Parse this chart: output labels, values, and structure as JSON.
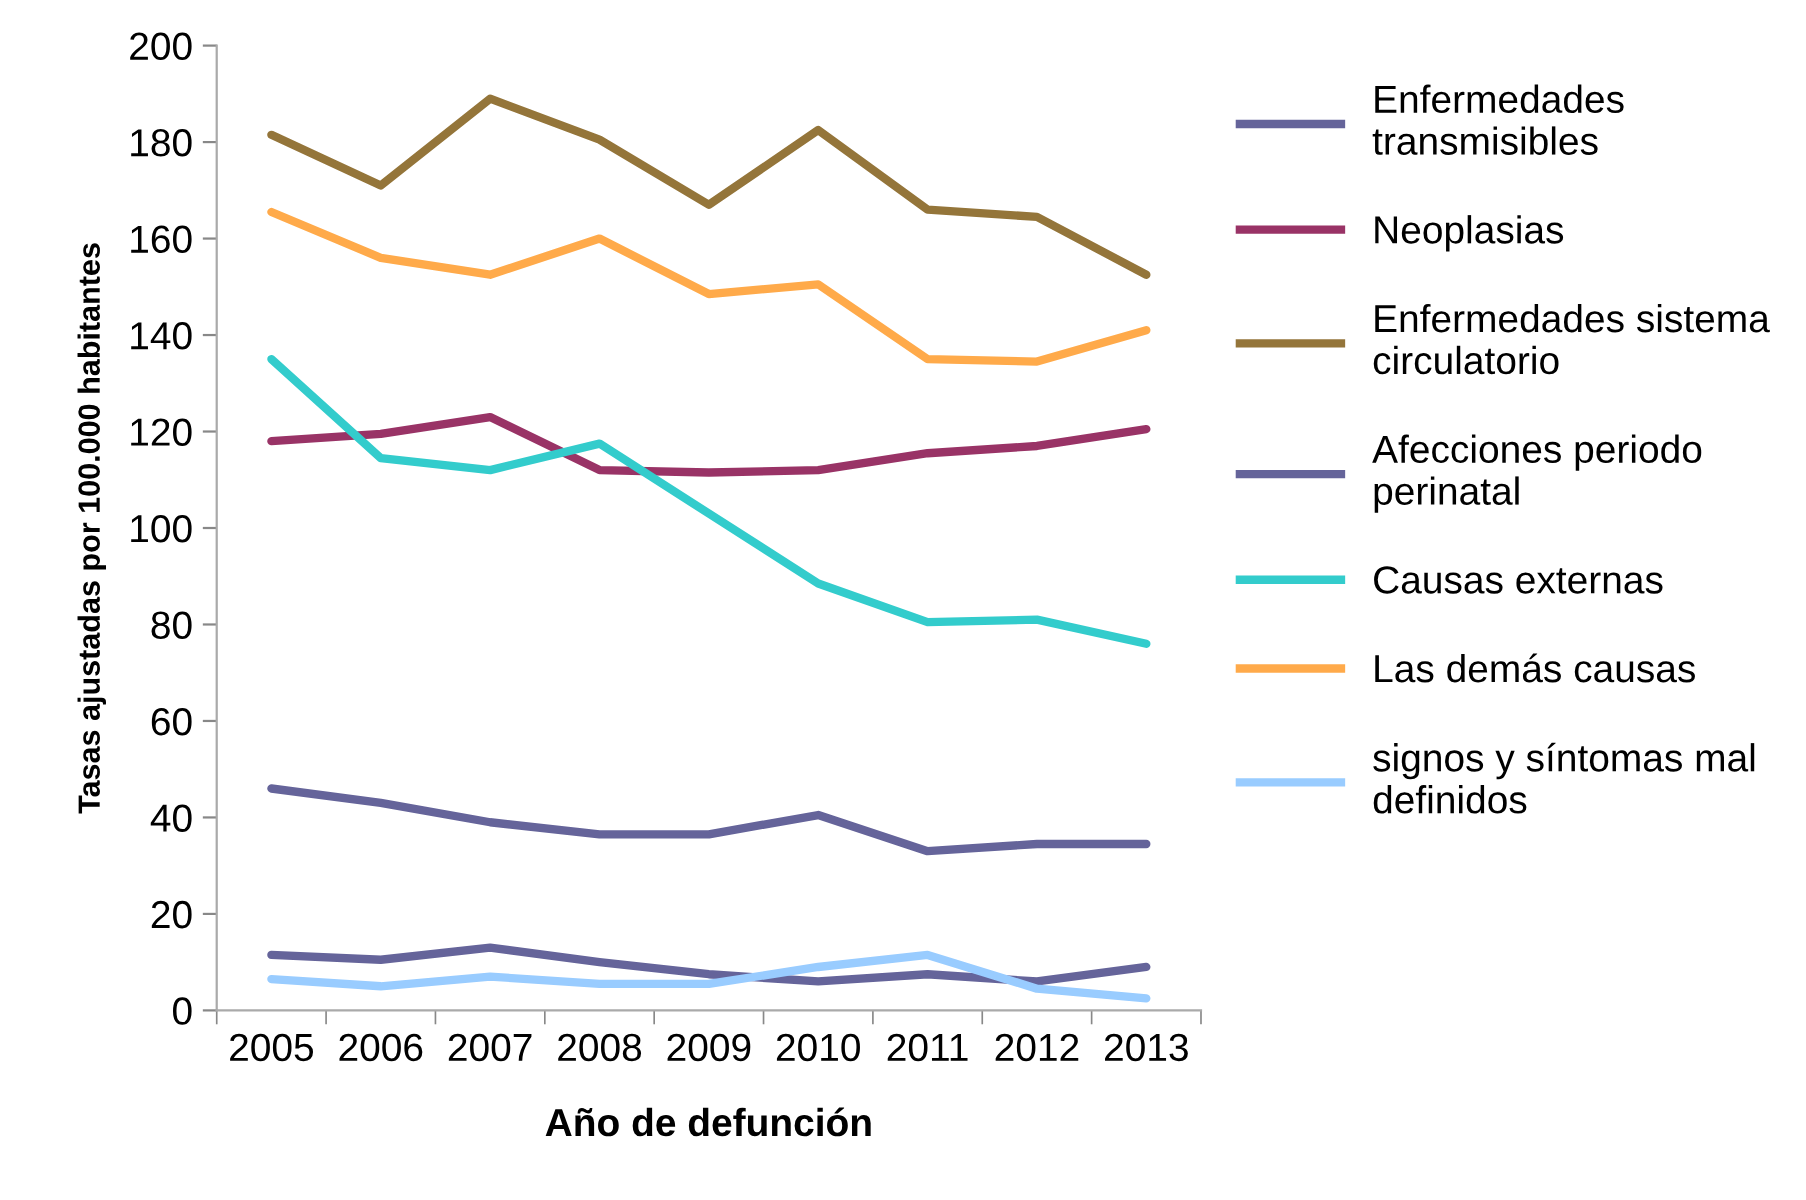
{
  "chart_data": {
    "type": "line",
    "xlabel": "Año de defunción",
    "ylabel": "Tasas ajustadas por 100.000 habitantes",
    "categories": [
      "2005",
      "2006",
      "2007",
      "2008",
      "2009",
      "2010",
      "2011",
      "2012",
      "2013"
    ],
    "series": [
      {
        "name": "Enfermedades\ntransmisibles",
        "color": "#65649a",
        "values": [
          46,
          43,
          39,
          36.5,
          36.5,
          40.5,
          33,
          34.5,
          34.5
        ]
      },
      {
        "name": "Neoplasias",
        "color": "#993366",
        "values": [
          118,
          119.5,
          123,
          112,
          111.5,
          112,
          115.5,
          117,
          120.5
        ]
      },
      {
        "name": "Enfermedades sistema\ncirculatorio",
        "color": "#94753a",
        "values": [
          181.5,
          171,
          189,
          180.5,
          167,
          182.5,
          166,
          164.5,
          152.5
        ]
      },
      {
        "name": "Afecciones periodo\nperinatal",
        "color": "#65649a",
        "values": [
          11.5,
          10.5,
          13,
          10,
          7.5,
          6,
          7.5,
          6,
          9
        ]
      },
      {
        "name": "Causas externas",
        "color": "#33cccc",
        "values": [
          135,
          114.5,
          112,
          117.5,
          103,
          88.5,
          80.5,
          81,
          76
        ]
      },
      {
        "name": "Las demás causas",
        "color": "#ffaa4a",
        "values": [
          165.5,
          156,
          152.5,
          160,
          148.5,
          150.5,
          135,
          134.5,
          141
        ]
      },
      {
        "name": "signos y síntomas mal\ndefinidos",
        "color": "#99ccff",
        "values": [
          6.5,
          5,
          7,
          5.5,
          5.5,
          9,
          11.5,
          4.5,
          2.5
        ]
      }
    ],
    "ylim": [
      0,
      200
    ],
    "yticks": [
      0,
      20,
      40,
      60,
      80,
      100,
      120,
      140,
      160,
      180,
      200
    ],
    "legend": "right",
    "grid": false,
    "marker": "none",
    "line_style": "solid"
  }
}
